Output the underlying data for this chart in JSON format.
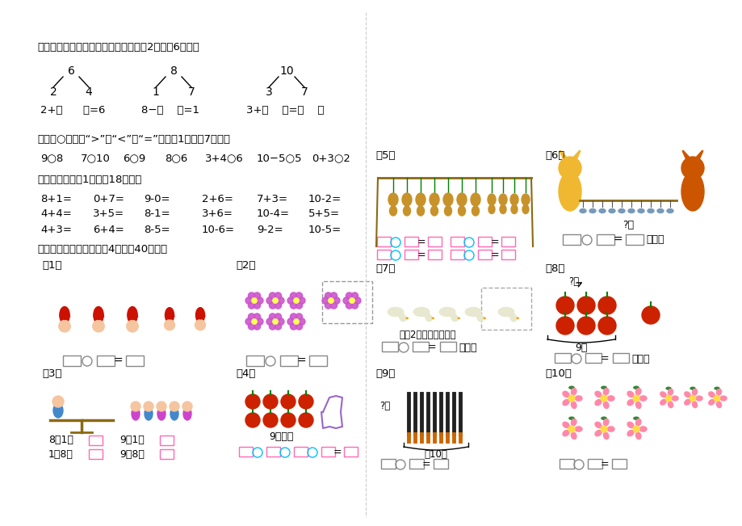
{
  "bg_color": "#ffffff",
  "section4_title": "四、根据数的组成把算式写完整（每题2分，六6分）。",
  "section5_title": "五、在○里填上“>”、“<”或“=”（每题1分，六7分）。",
  "section5_items": [
    "9○8",
    "7○10",
    "6○9",
    "8○6",
    "3+4○6",
    "10−5○5",
    "0+3○2"
  ],
  "section6_title": "六、计算（每题1分，六18分）。",
  "section6_rows": [
    [
      "8+1=",
      "0+7=",
      "9-0=",
      "2+6=",
      "7+3=",
      "10-2="
    ],
    [
      "4+4=",
      "3+5=",
      "8-1=",
      "3+6=",
      "10-4=",
      "5+5="
    ],
    [
      "4+3=",
      "6+4=",
      "8-5=",
      "10-6=",
      "9-2=",
      "10-5="
    ]
  ],
  "section7_title": "七、看图列式计算（每题4分，六40分）。"
}
